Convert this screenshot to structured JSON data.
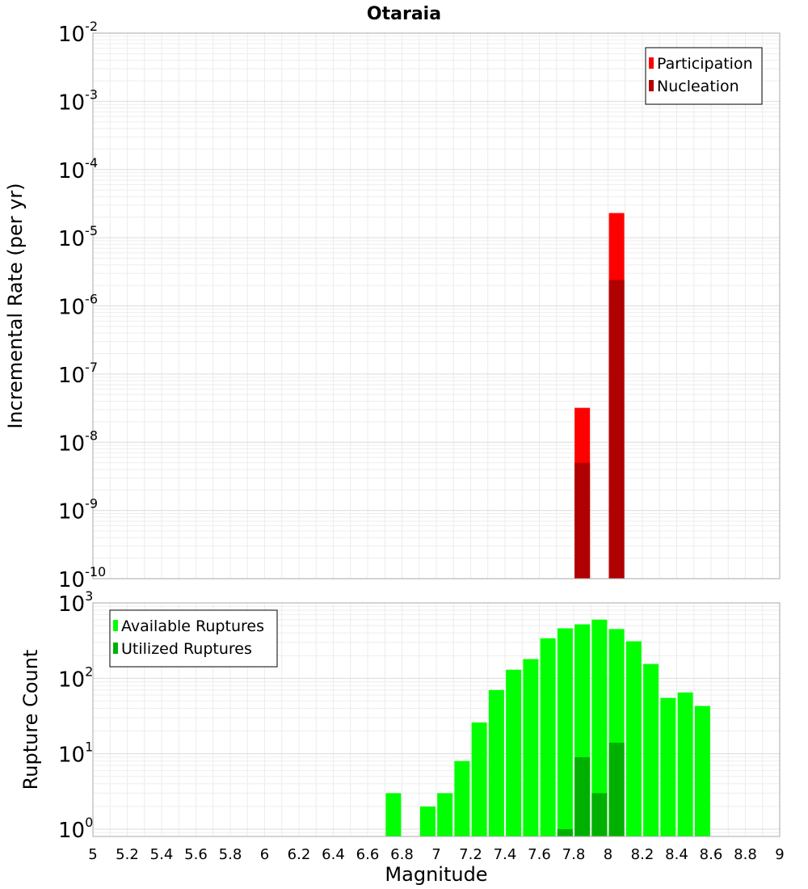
{
  "chart_data": [
    {
      "type": "bar",
      "title": "Otaraia",
      "ylabel": "Incremental Rate (per yr)",
      "yscale": "log",
      "ylim": [
        1e-10,
        0.01
      ],
      "xlim": [
        5,
        9
      ],
      "grid": true,
      "legend_position": "top-right",
      "y_ticks": [
        {
          "base": "10",
          "exp": "-10"
        },
        {
          "base": "10",
          "exp": "-9"
        },
        {
          "base": "10",
          "exp": "-8"
        },
        {
          "base": "10",
          "exp": "-7"
        },
        {
          "base": "10",
          "exp": "-6"
        },
        {
          "base": "10",
          "exp": "-5"
        },
        {
          "base": "10",
          "exp": "-4"
        },
        {
          "base": "10",
          "exp": "-3"
        },
        {
          "base": "10",
          "exp": "-2"
        }
      ],
      "series": [
        {
          "name": "Participation",
          "color": "#ff0000",
          "points": [
            {
              "x": 7.85,
              "y": 3.2e-08
            },
            {
              "x": 8.05,
              "y": 2.3e-05
            }
          ]
        },
        {
          "name": "Nucleation",
          "color": "#b00000",
          "points": [
            {
              "x": 7.85,
              "y": 5e-09
            },
            {
              "x": 8.05,
              "y": 2.4e-06
            }
          ]
        }
      ]
    },
    {
      "type": "bar",
      "xlabel": "Magnitude",
      "ylabel": "Rupture Count",
      "yscale": "log",
      "ylim": [
        0.8,
        1000
      ],
      "xlim": [
        5,
        9
      ],
      "grid": true,
      "legend_position": "top-left",
      "y_ticks": [
        {
          "base": "10",
          "exp": "0"
        },
        {
          "base": "10",
          "exp": "1"
        },
        {
          "base": "10",
          "exp": "2"
        },
        {
          "base": "10",
          "exp": "3"
        }
      ],
      "x_ticks": [
        "5",
        "5.2",
        "5.4",
        "5.6",
        "5.8",
        "6",
        "6.2",
        "6.4",
        "6.6",
        "6.8",
        "7",
        "7.2",
        "7.4",
        "7.6",
        "7.8",
        "8",
        "8.2",
        "8.4",
        "8.6",
        "8.8",
        "9"
      ],
      "series": [
        {
          "name": "Available Ruptures",
          "color": "#00ff00",
          "points": [
            {
              "x": 6.75,
              "y": 3
            },
            {
              "x": 6.95,
              "y": 2
            },
            {
              "x": 7.05,
              "y": 3
            },
            {
              "x": 7.15,
              "y": 8
            },
            {
              "x": 7.25,
              "y": 26
            },
            {
              "x": 7.35,
              "y": 70
            },
            {
              "x": 7.45,
              "y": 130
            },
            {
              "x": 7.55,
              "y": 180
            },
            {
              "x": 7.65,
              "y": 340
            },
            {
              "x": 7.75,
              "y": 460
            },
            {
              "x": 7.85,
              "y": 520
            },
            {
              "x": 7.95,
              "y": 600
            },
            {
              "x": 8.05,
              "y": 450
            },
            {
              "x": 8.15,
              "y": 310
            },
            {
              "x": 8.25,
              "y": 155
            },
            {
              "x": 8.35,
              "y": 55
            },
            {
              "x": 8.45,
              "y": 65
            },
            {
              "x": 8.55,
              "y": 43
            }
          ]
        },
        {
          "name": "Utilized Ruptures",
          "color": "#00b000",
          "points": [
            {
              "x": 7.75,
              "y": 1
            },
            {
              "x": 7.85,
              "y": 9
            },
            {
              "x": 7.95,
              "y": 3
            },
            {
              "x": 8.05,
              "y": 14
            }
          ]
        }
      ]
    }
  ]
}
